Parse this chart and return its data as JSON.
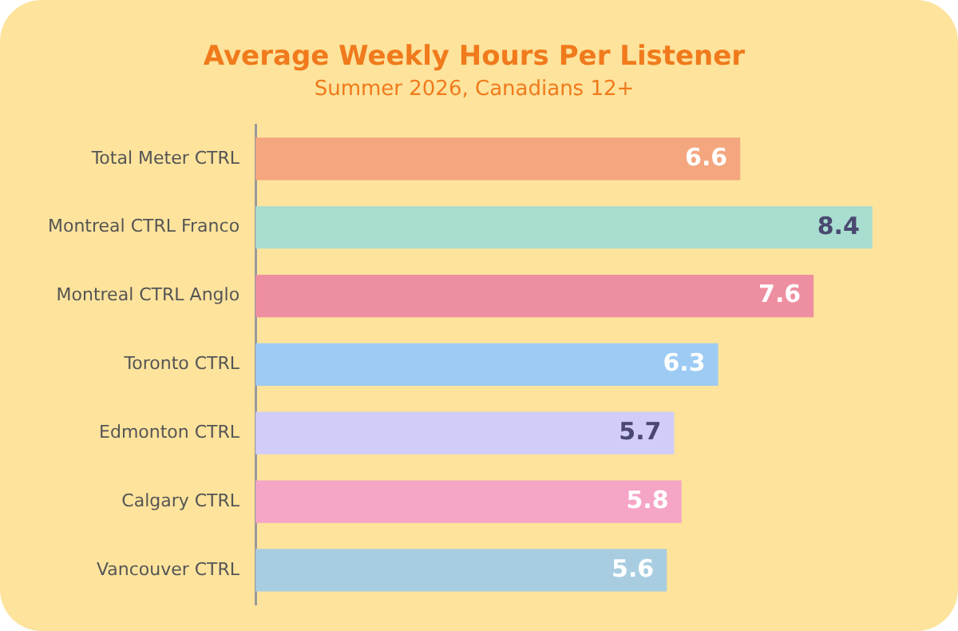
{
  "chart_data": {
    "type": "bar",
    "orientation": "horizontal",
    "title": "Average Weekly Hours Per Listener",
    "subtitle": "Summer 2026, Canadians 12+",
    "categories": [
      "Total Meter CTRL",
      "Montreal CTRL Franco",
      "Montreal CTRL Anglo",
      "Toronto CTRL",
      "Edmonton CTRL",
      "Calgary CTRL",
      "Vancouver CTRL"
    ],
    "values": [
      6.6,
      8.4,
      7.6,
      6.3,
      5.7,
      5.8,
      5.6
    ],
    "colors": [
      "#f4a67e",
      "#a8ddd0",
      "#ee8fa1",
      "#9dcbf3",
      "#d0cdf8",
      "#f5a5c5",
      "#a8cde0"
    ],
    "data_labels": true,
    "grid": false,
    "legend": false
  }
}
